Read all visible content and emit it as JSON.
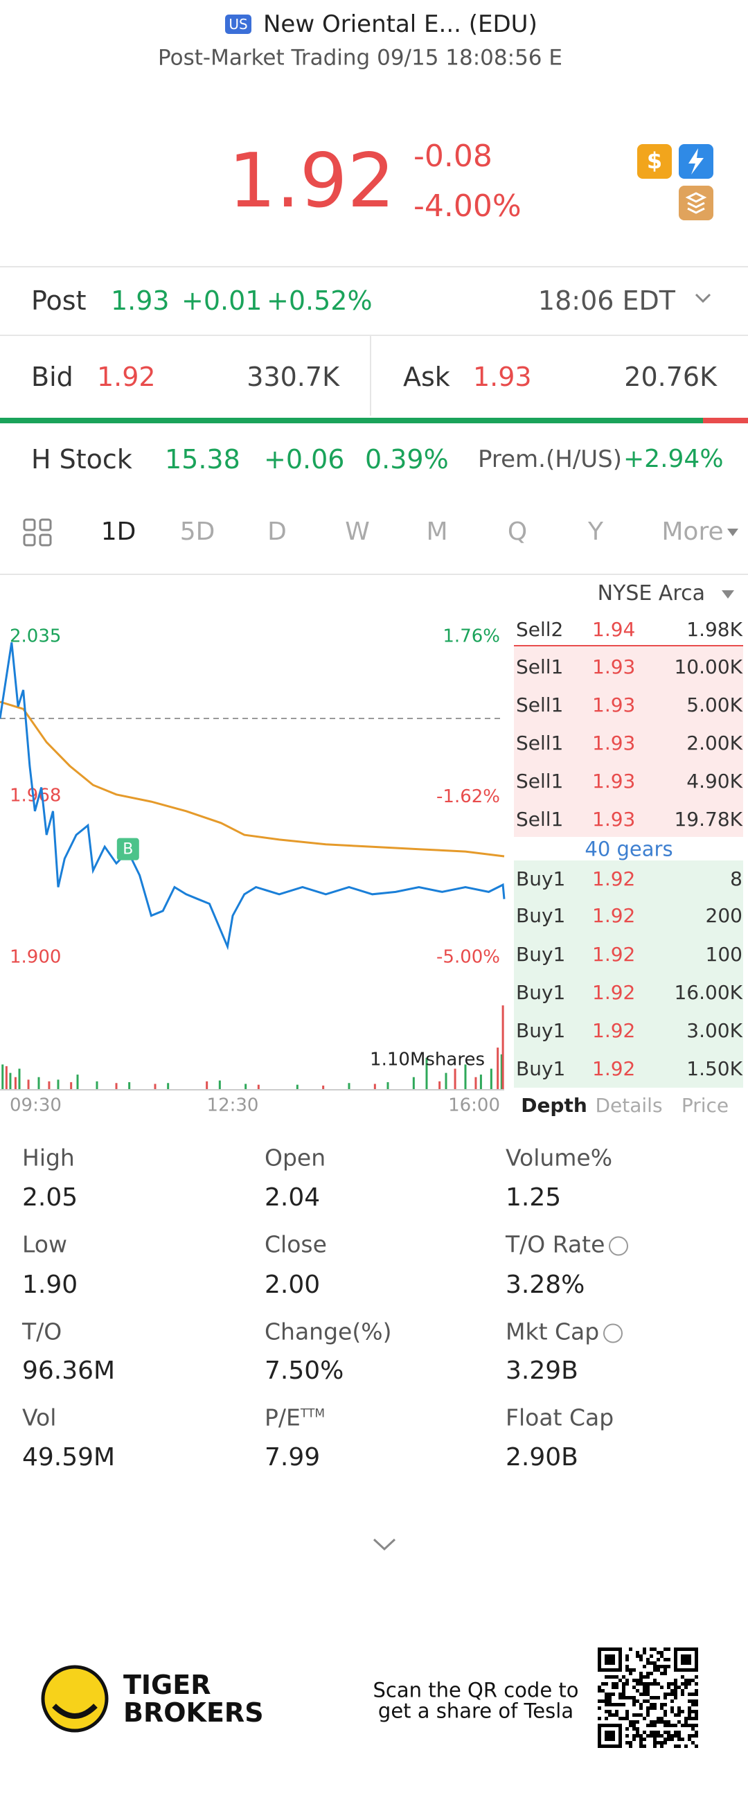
{
  "header": {
    "badge": "US",
    "title": "New Oriental E... (EDU)",
    "subtitle": "Post-Market Trading 09/15 18:08:56 E"
  },
  "quote": {
    "price": "1.92",
    "change": "-0.08",
    "change_pct": "-4.00%"
  },
  "post": {
    "label": "Post",
    "price": "1.93",
    "change": "+0.01",
    "change_pct": "+0.52%",
    "time": "18:06 EDT"
  },
  "bid_ask": {
    "bid_label": "Bid",
    "bid": "1.92",
    "bid_size": "330.7K",
    "ask_label": "Ask",
    "ask": "1.93",
    "ask_size": "20.76K"
  },
  "h_stock": {
    "label": "H Stock",
    "price": "15.38",
    "change": "+0.06",
    "change_pct": "0.39%",
    "premium_label": "Prem.(H/US)",
    "premium": "+2.94%"
  },
  "tabs": [
    "1D",
    "5D",
    "D",
    "W",
    "M",
    "Q",
    "Y",
    "More"
  ],
  "exchange": "NYSE Arca",
  "chart_data": {
    "type": "line",
    "xlim": [
      0,
      390
    ],
    "xticks": [
      {
        "value": 0,
        "label": "09:30"
      },
      {
        "value": 180,
        "label": "12:30"
      },
      {
        "value": 390,
        "label": "16:00"
      }
    ],
    "ylim": [
      1.9,
      2.035
    ],
    "yticks": [
      {
        "value": 2.035,
        "label": "2.035"
      },
      {
        "value": 1.968,
        "label": "1.968"
      },
      {
        "value": 1.9,
        "label": "1.900"
      }
    ],
    "y2lim": [
      -5,
      1.76
    ],
    "y2ticks": [
      {
        "value": 1.76,
        "label": "1.76%"
      },
      {
        "value": -1.62,
        "label": "-1.62%"
      },
      {
        "value": -5,
        "label": "-5.00%"
      }
    ],
    "ref_line": 2.0,
    "series": [
      {
        "color": "#1a7fd8",
        "x": [
          0,
          9,
          14,
          18,
          23,
          27,
          32,
          36,
          41,
          45,
          50,
          59,
          68,
          72,
          81,
          90,
          99,
          108,
          117,
          126,
          135,
          144,
          153,
          162,
          176,
          180,
          189,
          198,
          216,
          234,
          252,
          270,
          288,
          306,
          324,
          342,
          360,
          378,
          389,
          390
        ],
        "values": [
          2.0,
          2.032,
          2.005,
          2.012,
          1.98,
          1.961,
          1.971,
          1.951,
          1.961,
          1.929,
          1.941,
          1.951,
          1.955,
          1.936,
          1.946,
          1.939,
          1.944,
          1.934,
          1.917,
          1.919,
          1.929,
          1.926,
          1.924,
          1.922,
          1.904,
          1.917,
          1.926,
          1.929,
          1.926,
          1.929,
          1.926,
          1.929,
          1.926,
          1.927,
          1.929,
          1.927,
          1.929,
          1.927,
          1.93,
          1.924
        ]
      },
      {
        "color": "#e59a2a",
        "x": [
          0,
          18,
          36,
          54,
          72,
          90,
          117,
          144,
          171,
          189,
          216,
          252,
          288,
          324,
          360,
          390
        ],
        "values": [
          2.007,
          2.004,
          1.99,
          1.98,
          1.972,
          1.968,
          1.965,
          1.961,
          1.956,
          1.951,
          1.949,
          1.947,
          1.946,
          1.945,
          1.944,
          1.942
        ]
      }
    ],
    "annotation": {
      "x": 99,
      "y": 1.945,
      "text": "B"
    },
    "volume": {
      "label": "1.10Mshares",
      "ylim": [
        0,
        1100000
      ],
      "up": {
        "color": "#2fa85a",
        "x": [
          2,
          8,
          15,
          30,
          45,
          60,
          75,
          100,
          130,
          170,
          190,
          230,
          270,
          300,
          320,
          330,
          345,
          360,
          372,
          380,
          388
        ],
        "values": [
          300000,
          200000,
          250000,
          150000,
          120000,
          180000,
          100000,
          90000,
          80000,
          110000,
          70000,
          60000,
          80000,
          90000,
          150000,
          380000,
          200000,
          300000,
          180000,
          250000,
          420000
        ]
      },
      "down": {
        "color": "#e05252",
        "x": [
          5,
          12,
          22,
          38,
          55,
          90,
          120,
          160,
          200,
          250,
          290,
          340,
          352,
          368,
          385,
          389
        ],
        "values": [
          280000,
          150000,
          120000,
          100000,
          90000,
          80000,
          70000,
          100000,
          60000,
          50000,
          70000,
          100000,
          250000,
          150000,
          500000,
          1000000
        ]
      }
    }
  },
  "order_book": {
    "asks": [
      {
        "label": "Sell2",
        "price": "1.94",
        "size": "1.98K"
      },
      {
        "label": "Sell1",
        "price": "1.93",
        "size": "10.00K"
      },
      {
        "label": "Sell1",
        "price": "1.93",
        "size": "5.00K"
      },
      {
        "label": "Sell1",
        "price": "1.93",
        "size": "2.00K"
      },
      {
        "label": "Sell1",
        "price": "1.93",
        "size": "4.90K"
      },
      {
        "label": "Sell1",
        "price": "1.93",
        "size": "19.78K"
      }
    ],
    "gears": "40 gears",
    "bids": [
      {
        "label": "Buy1",
        "price": "1.92",
        "size": "8"
      },
      {
        "label": "Buy1",
        "price": "1.92",
        "size": "200"
      },
      {
        "label": "Buy1",
        "price": "1.92",
        "size": "100"
      },
      {
        "label": "Buy1",
        "price": "1.92",
        "size": "16.00K"
      },
      {
        "label": "Buy1",
        "price": "1.92",
        "size": "3.00K"
      },
      {
        "label": "Buy1",
        "price": "1.92",
        "size": "1.50K"
      }
    ]
  },
  "book_tabs": [
    "Depth",
    "Details",
    "Price"
  ],
  "stats": [
    {
      "label": "High",
      "value": "2.05"
    },
    {
      "label": "Open",
      "value": "2.04"
    },
    {
      "label": "Volume%",
      "value": "1.25"
    },
    {
      "label": "Low",
      "value": "1.90"
    },
    {
      "label": "Close",
      "value": "2.00"
    },
    {
      "label": "T/O Rate",
      "value": "3.28%"
    },
    {
      "label": "T/O",
      "value": "96.36M"
    },
    {
      "label": "Change(%)",
      "value": "7.50%"
    },
    {
      "label": "Mkt Cap",
      "value": "3.29B"
    },
    {
      "label": "Vol",
      "value": "49.59M"
    },
    {
      "label": "P/E",
      "sup": "TTM",
      "value": "7.99"
    },
    {
      "label": "Float Cap",
      "value": "2.90B"
    }
  ],
  "footer": {
    "brand": [
      "TIGER",
      "BROKERS"
    ],
    "promo": [
      "Scan the QR code to",
      "get a share of Tesla"
    ]
  }
}
